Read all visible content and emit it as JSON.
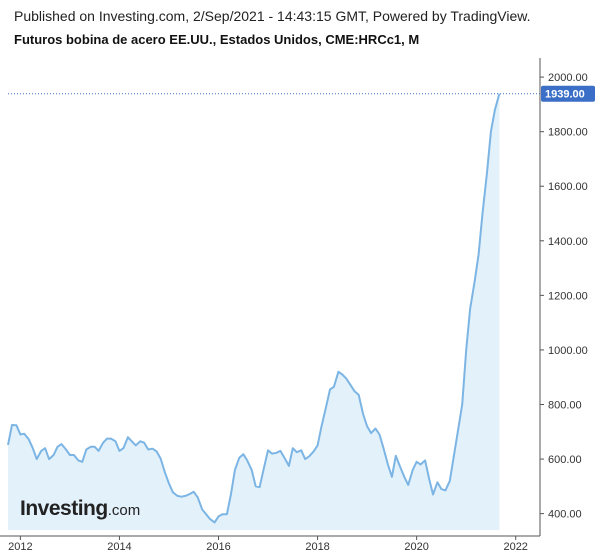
{
  "header": {
    "published": "Published on Investing.com, 2/Sep/2021 - 14:43:15 GMT, Powered by TradingView.",
    "title": "Futuros bobina de acero EE.UU., Estados Unidos, CME:HRCc1, M"
  },
  "logo": {
    "main": "Investing",
    "suffix": ".com"
  },
  "chart_data": {
    "type": "area",
    "title": "Futuros bobina de acero EE.UU., Estados Unidos, CME:HRCc1, M",
    "xlim": [
      2011.75,
      2022.45
    ],
    "ylim": [
      340,
      2070
    ],
    "x_ticks": [
      {
        "value": 2012,
        "label": "2012"
      },
      {
        "value": 2014,
        "label": "2014"
      },
      {
        "value": 2016,
        "label": "2016"
      },
      {
        "value": 2018,
        "label": "2018"
      },
      {
        "value": 2020,
        "label": "2020"
      },
      {
        "value": 2022,
        "label": "2022"
      }
    ],
    "y_ticks": [
      {
        "value": 400,
        "label": "400.00"
      },
      {
        "value": 600,
        "label": "600.00"
      },
      {
        "value": 800,
        "label": "800.00"
      },
      {
        "value": 1000,
        "label": "1000.00"
      },
      {
        "value": 1200,
        "label": "1200.00"
      },
      {
        "value": 1400,
        "label": "1400.00"
      },
      {
        "value": 1600,
        "label": "1600.00"
      },
      {
        "value": 1800,
        "label": "1800.00"
      },
      {
        "value": 2000,
        "label": "2000.00"
      }
    ],
    "last_value": 1939.0,
    "last_value_label": "1939.00",
    "colors": {
      "line": "#7cb5e4",
      "fill": "#e3f1fb",
      "last_price": "#3b6fc7",
      "axis": "#555555"
    },
    "series": [
      {
        "x": [
          2011.75,
          2011.83,
          2011.92,
          2012.0,
          2012.08,
          2012.17,
          2012.25,
          2012.33,
          2012.42,
          2012.5,
          2012.58,
          2012.67,
          2012.75,
          2012.83,
          2012.92,
          2013.0,
          2013.08,
          2013.17,
          2013.25,
          2013.33,
          2013.42,
          2013.5,
          2013.58,
          2013.67,
          2013.75,
          2013.83,
          2013.92,
          2014.0,
          2014.08,
          2014.17,
          2014.25,
          2014.33,
          2014.42,
          2014.5,
          2014.58,
          2014.67,
          2014.75,
          2014.83,
          2014.92,
          2015.0,
          2015.08,
          2015.17,
          2015.25,
          2015.33,
          2015.42,
          2015.5,
          2015.58,
          2015.67,
          2015.75,
          2015.83,
          2015.92,
          2016.0,
          2016.08,
          2016.17,
          2016.25,
          2016.33,
          2016.42,
          2016.5,
          2016.58,
          2016.67,
          2016.75,
          2016.83,
          2016.92,
          2017.0,
          2017.08,
          2017.17,
          2017.25,
          2017.33,
          2017.42,
          2017.5,
          2017.58,
          2017.67,
          2017.75,
          2017.83,
          2017.92,
          2018.0,
          2018.08,
          2018.17,
          2018.25,
          2018.33,
          2018.42,
          2018.5,
          2018.58,
          2018.67,
          2018.75,
          2018.83,
          2018.92,
          2019.0,
          2019.08,
          2019.17,
          2019.25,
          2019.33,
          2019.42,
          2019.5,
          2019.58,
          2019.67,
          2019.75,
          2019.83,
          2019.92,
          2020.0,
          2020.08,
          2020.17,
          2020.25,
          2020.33,
          2020.42,
          2020.5,
          2020.58,
          2020.67,
          2020.75,
          2020.83,
          2020.92,
          2021.0,
          2021.08,
          2021.17,
          2021.25,
          2021.33,
          2021.42,
          2021.5,
          2021.58,
          2021.67
        ],
        "values": [
          652,
          725,
          724,
          690,
          693,
          672,
          640,
          600,
          630,
          640,
          600,
          615,
          645,
          655,
          635,
          615,
          615,
          595,
          590,
          635,
          645,
          645,
          630,
          660,
          675,
          675,
          665,
          630,
          640,
          680,
          665,
          650,
          665,
          660,
          635,
          638,
          628,
          602,
          550,
          510,
          478,
          465,
          462,
          465,
          472,
          480,
          460,
          415,
          398,
          380,
          368,
          390,
          398,
          398,
          470,
          560,
          605,
          618,
          595,
          560,
          500,
          497,
          570,
          632,
          620,
          623,
          630,
          605,
          575,
          640,
          625,
          632,
          600,
          610,
          628,
          650,
          720,
          790,
          855,
          865,
          920,
          910,
          895,
          870,
          848,
          835,
          765,
          720,
          695,
          712,
          690,
          640,
          580,
          535,
          612,
          570,
          535,
          505,
          560,
          590,
          580,
          595,
          530,
          470,
          515,
          490,
          485,
          520,
          610,
          700,
          800,
          1000,
          1150,
          1250,
          1350,
          1500,
          1650,
          1800,
          1880,
          1939
        ]
      }
    ]
  }
}
